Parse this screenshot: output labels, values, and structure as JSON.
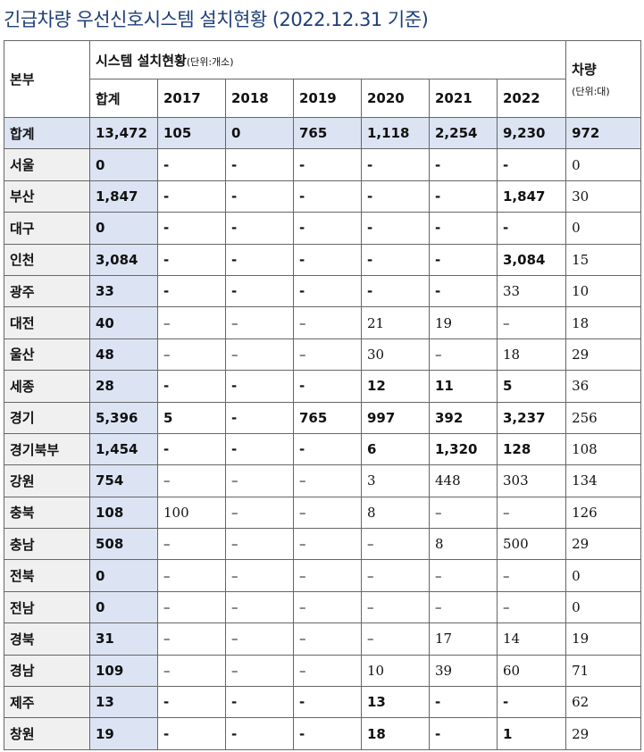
{
  "title": "긴급차량 우선신호시스템 설치현황 (2022.12.31 기준)",
  "header": {
    "region": "본부",
    "system_group": "시스템 설치현황",
    "system_unit": "(단위:개소)",
    "vehicle": "차량",
    "vehicle_unit": "(단위:대)",
    "total": "합계",
    "years": [
      "2017",
      "2018",
      "2019",
      "2020",
      "2021",
      "2022"
    ]
  },
  "total_row": {
    "region": "합계",
    "total": "13,472",
    "y2017": "105",
    "y2018": "0",
    "y2019": "765",
    "y2020": "1,118",
    "y2021": "2,254",
    "y2022": "9,230",
    "vehicle": "972"
  },
  "rows": [
    {
      "region": "서울",
      "total": "0",
      "y2017": "-",
      "y2018": "-",
      "y2019": "-",
      "y2020": "-",
      "y2021": "-",
      "y2022": "-",
      "vehicle": "0"
    },
    {
      "region": "부산",
      "total": "1,847",
      "y2017": "-",
      "y2018": "-",
      "y2019": "-",
      "y2020": "-",
      "y2021": "-",
      "y2022": "1,847",
      "vehicle": "30"
    },
    {
      "region": "대구",
      "total": "0",
      "y2017": "-",
      "y2018": "-",
      "y2019": "-",
      "y2020": "-",
      "y2021": "-",
      "y2022": "-",
      "vehicle": "0"
    },
    {
      "region": "인천",
      "total": "3,084",
      "y2017": "-",
      "y2018": "-",
      "y2019": "-",
      "y2020": "-",
      "y2021": "-",
      "y2022": "3,084",
      "vehicle": "15"
    },
    {
      "region": "광주",
      "total": "33",
      "y2017": "-",
      "y2018": "-",
      "y2019": "-",
      "y2020": "-",
      "y2021": "-",
      "y2022": "33",
      "vehicle": "10"
    },
    {
      "region": "대전",
      "total": "40",
      "y2017": "–",
      "y2018": "–",
      "y2019": "–",
      "y2020": "21",
      "y2021": "19",
      "y2022": "–",
      "vehicle": "18"
    },
    {
      "region": "울산",
      "total": "48",
      "y2017": "–",
      "y2018": "–",
      "y2019": "–",
      "y2020": "30",
      "y2021": "–",
      "y2022": "18",
      "vehicle": "29"
    },
    {
      "region": "세종",
      "total": "28",
      "y2017": "-",
      "y2018": "-",
      "y2019": "-",
      "y2020": "12",
      "y2021": "11",
      "y2022": "5",
      "vehicle": "36"
    },
    {
      "region": "경기",
      "total": "5,396",
      "y2017": "5",
      "y2018": "-",
      "y2019": "765",
      "y2020": "997",
      "y2021": "392",
      "y2022": "3,237",
      "vehicle": "256"
    },
    {
      "region": "경기북부",
      "total": "1,454",
      "y2017": "-",
      "y2018": "-",
      "y2019": "-",
      "y2020": "6",
      "y2021": "1,320",
      "y2022": "128",
      "vehicle": "108"
    },
    {
      "region": "강원",
      "total": "754",
      "y2017": "–",
      "y2018": "–",
      "y2019": "–",
      "y2020": "3",
      "y2021": "448",
      "y2022": "303",
      "vehicle": "134"
    },
    {
      "region": "충북",
      "total": "108",
      "y2017": "100",
      "y2018": "–",
      "y2019": "–",
      "y2020": "8",
      "y2021": "–",
      "y2022": "–",
      "vehicle": "126"
    },
    {
      "region": "충남",
      "total": "508",
      "y2017": "–",
      "y2018": "–",
      "y2019": "–",
      "y2020": "–",
      "y2021": "8",
      "y2022": "500",
      "vehicle": "29"
    },
    {
      "region": "전북",
      "total": "0",
      "y2017": "–",
      "y2018": "–",
      "y2019": "–",
      "y2020": "–",
      "y2021": "–",
      "y2022": "–",
      "vehicle": "0"
    },
    {
      "region": "전남",
      "total": "0",
      "y2017": "–",
      "y2018": "–",
      "y2019": "–",
      "y2020": "–",
      "y2021": "–",
      "y2022": "–",
      "vehicle": "0"
    },
    {
      "region": "경북",
      "total": "31",
      "y2017": "–",
      "y2018": "–",
      "y2019": "–",
      "y2020": "–",
      "y2021": "17",
      "y2022": "14",
      "vehicle": "19"
    },
    {
      "region": "경남",
      "total": "109",
      "y2017": "–",
      "y2018": "–",
      "y2019": "–",
      "y2020": "10",
      "y2021": "39",
      "y2022": "60",
      "vehicle": "71"
    },
    {
      "region": "제주",
      "total": "13",
      "y2017": "-",
      "y2018": "-",
      "y2019": "-",
      "y2020": "13",
      "y2021": "-",
      "y2022": "-",
      "vehicle": "62"
    },
    {
      "region": "창원",
      "total": "19",
      "y2017": "-",
      "y2018": "-",
      "y2019": "-",
      "y2020": "18",
      "y2021": "-",
      "y2022": "1",
      "vehicle": "29"
    }
  ],
  "colors": {
    "title": "#1f3f78",
    "highlight": "#dce4f4",
    "header_bg": "#f0f0f0",
    "border": "#666666"
  }
}
